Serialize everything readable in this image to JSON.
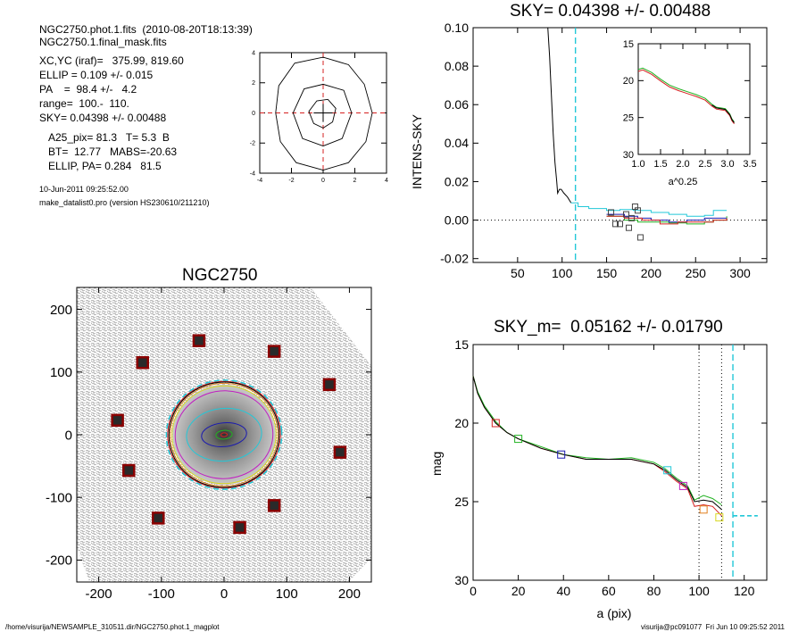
{
  "header": {
    "line1": "NGC2750.phot.1.fits  (2010-08-20T18:13:39)",
    "line2": "NGC2750.1.final_mask.fits"
  },
  "params": {
    "xcyc": "XC,YC (iraf)=   375.99, 819.60",
    "ellip": "ELLIP = 0.109 +/- 0.015",
    "pa": "PA    =  98.4 +/-   4.2",
    "range": "range=  100.-  110.",
    "sky": "SKY= 0.04398 +/- 0.00488"
  },
  "extra": {
    "a25": "A25_pix= 81.3   T= 5.3  B",
    "bt": "BT=  12.77   MABS=-20.63",
    "ellip_pa": "ELLIP, PA= 0.284   81.5"
  },
  "timestamp": "10-Jun-2011 09:25:52.00",
  "program": "make_datalist0.pro (version HS230610/211210)",
  "footer": {
    "path": "/home/visurija/NEWSAMPLE_310511.dir/NGC2750.phot.1_magplot",
    "user": "visurija@pc091077  Fri Jun 10 09:25:52 2011"
  },
  "colors": {
    "black": "#000000",
    "red": "#d62020",
    "green": "#22b222",
    "blue": "#1a1ab0",
    "cyan": "#22c8d8",
    "magenta": "#c020c0",
    "orange": "#e08020",
    "yellow": "#d8d820",
    "gray": "#9a9a9a"
  },
  "chart_data": [
    {
      "type": "contour",
      "xlim": [
        -4,
        4
      ],
      "ylim": [
        -4,
        4
      ],
      "xticks": [
        "-4",
        "-2",
        "0",
        "2",
        "4"
      ],
      "yticks": [
        "-4",
        "-2",
        "0",
        "2",
        "4"
      ],
      "contours": [
        [
          [
            0,
            -3.8
          ],
          [
            1.6,
            -3.3
          ],
          [
            2.7,
            -1.9
          ],
          [
            3.1,
            0
          ],
          [
            2.6,
            1.9
          ],
          [
            1.6,
            3.2
          ],
          [
            0,
            3.7
          ],
          [
            -1.8,
            3.3
          ],
          [
            -2.8,
            1.8
          ],
          [
            -3.0,
            0
          ],
          [
            -2.7,
            -1.9
          ],
          [
            -1.7,
            -3.3
          ],
          [
            0,
            -3.8
          ]
        ],
        [
          [
            0,
            -2.2
          ],
          [
            1.2,
            -1.7
          ],
          [
            1.8,
            0
          ],
          [
            1.3,
            1.5
          ],
          [
            0,
            1.9
          ],
          [
            -1.2,
            1.6
          ],
          [
            -1.9,
            0
          ],
          [
            -1.3,
            -1.7
          ],
          [
            0,
            -2.2
          ]
        ],
        [
          [
            0,
            -1.0
          ],
          [
            0.6,
            -0.6
          ],
          [
            0.8,
            0.3
          ],
          [
            0.3,
            0.9
          ],
          [
            -0.4,
            0.8
          ],
          [
            -0.9,
            0.1
          ],
          [
            -0.6,
            -0.7
          ],
          [
            0,
            -1.0
          ]
        ]
      ],
      "crosshair": [
        0,
        0
      ]
    },
    {
      "type": "line",
      "title": "SKY= 0.04398 +/- 0.00488",
      "ylabel": "INTENS-SKY",
      "xlim": [
        0,
        330
      ],
      "ylim": [
        -0.022,
        0.1
      ],
      "xticks": [
        "50",
        "100",
        "150",
        "200",
        "250",
        "300"
      ],
      "yticks": [
        "-0.02",
        "0.00",
        "0.02",
        "0.04",
        "0.06",
        "0.08",
        "0.10"
      ],
      "sky_marker_x": 115,
      "series": [
        {
          "color": "black",
          "points": [
            [
              84,
              0.1
            ],
            [
              86,
              0.085
            ],
            [
              88,
              0.065
            ],
            [
              90,
              0.045
            ],
            [
              92,
              0.03
            ],
            [
              94,
              0.02
            ],
            [
              95,
              0.014
            ],
            [
              97,
              0.016
            ],
            [
              99,
              0.016
            ],
            [
              102,
              0.014
            ],
            [
              106,
              0.012
            ],
            [
              110,
              0.009
            ]
          ]
        },
        {
          "color": "cyan",
          "points": [
            [
              110,
              0.009
            ],
            [
              118,
              0.007
            ],
            [
              130,
              0.006
            ],
            [
              150,
              0.005
            ],
            [
              165,
              0.0055
            ],
            [
              180,
              0.005
            ],
            [
              200,
              0.004
            ],
            [
              220,
              0.003
            ],
            [
              240,
              0.002
            ],
            [
              260,
              0.0025
            ],
            [
              270,
              0.005
            ],
            [
              285,
              0.005
            ]
          ]
        },
        {
          "color": "green",
          "points": [
            [
              150,
              0.002
            ],
            [
              170,
              0.0
            ],
            [
              185,
              -0.001
            ],
            [
              200,
              -0.001
            ],
            [
              220,
              -0.0015
            ],
            [
              240,
              -0.002
            ],
            [
              260,
              -0.001
            ],
            [
              270,
              0.0
            ],
            [
              285,
              0.002
            ]
          ]
        },
        {
          "color": "blue",
          "points": [
            [
              150,
              0.003
            ],
            [
              170,
              0.002
            ],
            [
              185,
              0.001
            ],
            [
              200,
              0.0
            ],
            [
              220,
              -0.001
            ],
            [
              240,
              0.0
            ],
            [
              260,
              0.001
            ],
            [
              285,
              0.001
            ]
          ]
        },
        {
          "color": "red",
          "points": [
            [
              150,
              0.002
            ],
            [
              170,
              0.001
            ],
            [
              190,
              0.0
            ],
            [
              210,
              -0.002
            ],
            [
              230,
              -0.001
            ],
            [
              250,
              -0.001
            ],
            [
              270,
              0.0
            ],
            [
              285,
              0.001
            ]
          ]
        }
      ],
      "squares": [
        [
          155,
          0.004
        ],
        [
          165,
          -0.002
        ],
        [
          172,
          0.003
        ],
        [
          178,
          0.001
        ],
        [
          182,
          0.007
        ],
        [
          185,
          0.005
        ],
        [
          188,
          -0.009
        ],
        [
          175,
          -0.004
        ],
        [
          160,
          -0.002
        ]
      ],
      "inset": {
        "xlabel": "a^0.25",
        "xlim": [
          1.0,
          3.5
        ],
        "ylim": [
          15,
          30
        ],
        "xticks": [
          "1.0",
          "1.5",
          "2.0",
          "2.5",
          "3.0",
          "3.5"
        ],
        "yticks": [
          "15",
          "20",
          "25",
          "30"
        ],
        "points": [
          [
            1.0,
            18.5
          ],
          [
            1.1,
            18.3
          ],
          [
            1.3,
            18.9
          ],
          [
            1.5,
            19.8
          ],
          [
            1.7,
            20.6
          ],
          [
            1.9,
            21.1
          ],
          [
            2.1,
            21.5
          ],
          [
            2.3,
            21.9
          ],
          [
            2.5,
            22.4
          ],
          [
            2.65,
            23.2
          ],
          [
            2.75,
            23.6
          ],
          [
            2.85,
            23.7
          ],
          [
            2.95,
            23.8
          ],
          [
            3.05,
            24.5
          ],
          [
            3.1,
            25.2
          ],
          [
            3.15,
            25.6
          ]
        ]
      }
    },
    {
      "type": "image",
      "title": "NGC2750",
      "xlim": [
        -235,
        235
      ],
      "ylim": [
        -235,
        235
      ],
      "xticks": [
        "-200",
        "-100",
        "0",
        "100",
        "200"
      ],
      "yticks": [
        "-200",
        "-100",
        "0",
        "100",
        "200"
      ],
      "ellipses": [
        {
          "color": "red",
          "a": 90,
          "b": 85
        },
        {
          "color": "black",
          "a": 88,
          "b": 84
        },
        {
          "color": "orange",
          "a": 86,
          "b": 82
        },
        {
          "color": "cyan",
          "a": 92,
          "b": 87
        },
        {
          "color": "magenta",
          "a": 78,
          "b": 70
        },
        {
          "color": "yellow",
          "a": 83,
          "b": 78
        },
        {
          "color": "cyan",
          "a": 60,
          "b": 42
        },
        {
          "color": "blue",
          "a": 36,
          "b": 19
        },
        {
          "color": "green",
          "a": 13,
          "b": 7
        },
        {
          "color": "red",
          "a": 5,
          "b": 3
        }
      ],
      "sky_boxes": [
        [
          -40,
          150
        ],
        [
          80,
          133
        ],
        [
          -130,
          115
        ],
        [
          168,
          80
        ],
        [
          -170,
          23
        ],
        [
          185,
          -28
        ],
        [
          -152,
          -57
        ],
        [
          80,
          -113
        ],
        [
          -105,
          -133
        ],
        [
          25,
          -148
        ]
      ]
    },
    {
      "type": "line",
      "title": "SKY_m=  0.05162 +/- 0.01790",
      "xlabel": "a (pix)",
      "ylabel": "mag",
      "xlim": [
        0,
        130
      ],
      "ylim": [
        15,
        30
      ],
      "xticks": [
        "0",
        "20",
        "40",
        "60",
        "80",
        "100",
        "120"
      ],
      "yticks": [
        "15",
        "20",
        "25",
        "30"
      ],
      "vlines_dotted": [
        100,
        110
      ],
      "sky_marker_x": 115,
      "series": [
        {
          "color": "red",
          "points": [
            [
              0,
              17.0
            ],
            [
              2,
              18.1
            ],
            [
              5,
              19.0
            ],
            [
              10,
              20.0
            ],
            [
              15,
              20.6
            ],
            [
              20,
              21.0
            ],
            [
              30,
              21.6
            ],
            [
              40,
              22.0
            ],
            [
              50,
              22.3
            ],
            [
              60,
              22.3
            ],
            [
              70,
              22.3
            ],
            [
              80,
              22.6
            ],
            [
              85,
              23.1
            ],
            [
              90,
              23.7
            ],
            [
              95,
              24.2
            ],
            [
              98,
              25.3
            ],
            [
              102,
              25.2
            ],
            [
              106,
              25.3
            ],
            [
              110,
              25.9
            ]
          ]
        },
        {
          "color": "green",
          "points": [
            [
              0,
              17.0
            ],
            [
              2,
              18.0
            ],
            [
              5,
              18.9
            ],
            [
              10,
              19.9
            ],
            [
              15,
              20.6
            ],
            [
              20,
              21.0
            ],
            [
              30,
              21.5
            ],
            [
              40,
              22.0
            ],
            [
              50,
              22.2
            ],
            [
              60,
              22.3
            ],
            [
              70,
              22.2
            ],
            [
              80,
              22.5
            ],
            [
              85,
              22.9
            ],
            [
              90,
              23.5
            ],
            [
              95,
              24.0
            ],
            [
              98,
              24.9
            ],
            [
              102,
              24.6
            ],
            [
              106,
              24.8
            ],
            [
              110,
              25.2
            ]
          ]
        },
        {
          "color": "black",
          "points": [
            [
              0,
              17.0
            ],
            [
              2,
              18.1
            ],
            [
              5,
              19.0
            ],
            [
              10,
              20.0
            ],
            [
              15,
              20.6
            ],
            [
              20,
              21.0
            ],
            [
              30,
              21.6
            ],
            [
              40,
              22.0
            ],
            [
              50,
              22.3
            ],
            [
              60,
              22.3
            ],
            [
              70,
              22.3
            ],
            [
              80,
              22.6
            ],
            [
              85,
              23.0
            ],
            [
              90,
              23.6
            ],
            [
              95,
              24.1
            ],
            [
              98,
              25.0
            ],
            [
              102,
              24.9
            ],
            [
              106,
              25.0
            ],
            [
              110,
              25.5
            ]
          ]
        }
      ],
      "squares": [
        {
          "color": "red",
          "x": 10,
          "y": 20.0
        },
        {
          "color": "green",
          "x": 20,
          "y": 21.0
        },
        {
          "color": "blue",
          "x": 39,
          "y": 22.0
        },
        {
          "color": "cyan",
          "x": 86,
          "y": 23.0
        },
        {
          "color": "magenta",
          "x": 93,
          "y": 24.0
        },
        {
          "color": "yellow",
          "x": 109,
          "y": 26.0
        },
        {
          "color": "orange",
          "x": 102,
          "y": 25.5
        }
      ],
      "sky_level": 25.9
    }
  ]
}
